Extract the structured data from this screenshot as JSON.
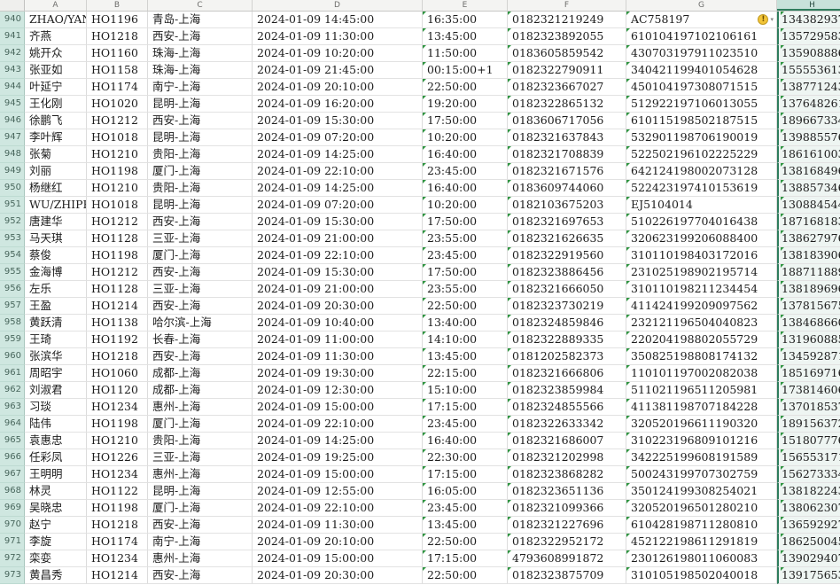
{
  "app": {
    "type": "spreadsheet-grid",
    "selection": "column-H"
  },
  "colors": {
    "accent_green": "#2f7d5d",
    "row_header_bg": "#cfe7e0",
    "selected_col_header_bg": "#c7e2da",
    "gridline": "#dcdcdc",
    "text_indicator_triangle": "#2e9440",
    "warning_yellow": "#f2c437"
  },
  "icons": {
    "warning_glyph": "!",
    "warning_dropdown_glyph": "▾"
  },
  "sheet": {
    "columns": [
      {
        "letter": "A",
        "selected": false
      },
      {
        "letter": "B",
        "selected": false
      },
      {
        "letter": "C",
        "selected": false
      },
      {
        "letter": "D",
        "selected": false
      },
      {
        "letter": "E",
        "selected": false
      },
      {
        "letter": "F",
        "selected": false
      },
      {
        "letter": "G",
        "selected": false
      },
      {
        "letter": "H",
        "selected": true
      }
    ],
    "rows": [
      {
        "num": "940",
        "name": "ZHAO/YAN",
        "flight": "HO1196",
        "route": "青岛-上海",
        "depart": "2024-01-09 14:45:00",
        "arrive": "16:35:00",
        "ticket": "0182321219249",
        "id_no": "AC758197",
        "phone": "134382937",
        "warning": true
      },
      {
        "num": "941",
        "name": "齐燕",
        "flight": "HO1218",
        "route": "西安-上海",
        "depart": "2024-01-09 11:30:00",
        "arrive": "13:45:00",
        "ticket": "0182323892055",
        "id_no": "610104197102106161",
        "phone": "135729583",
        "warning": false
      },
      {
        "num": "942",
        "name": "姚开众",
        "flight": "HO1160",
        "route": "珠海-上海",
        "depart": "2024-01-09 10:20:00",
        "arrive": "11:50:00",
        "ticket": "0183605859542",
        "id_no": "430703197911023510",
        "phone": "135908886",
        "warning": false
      },
      {
        "num": "943",
        "name": "张亚如",
        "flight": "HO1158",
        "route": "珠海-上海",
        "depart": "2024-01-09 21:45:00",
        "arrive": "00:15:00+1",
        "ticket": "0182322790911",
        "id_no": "340421199401054628",
        "phone": "155553613",
        "warning": false
      },
      {
        "num": "944",
        "name": "叶延宁",
        "flight": "HO1174",
        "route": "南宁-上海",
        "depart": "2024-01-09 20:10:00",
        "arrive": "22:50:00",
        "ticket": "0182323667027",
        "id_no": "450104197308071515",
        "phone": "138771243",
        "warning": false
      },
      {
        "num": "945",
        "name": "王化刚",
        "flight": "HO1020",
        "route": "昆明-上海",
        "depart": "2024-01-09 16:20:00",
        "arrive": "19:20:00",
        "ticket": "0182322865132",
        "id_no": "512922197106013055",
        "phone": "137648261",
        "warning": false
      },
      {
        "num": "946",
        "name": "徐鹏飞",
        "flight": "HO1212",
        "route": "西安-上海",
        "depart": "2024-01-09 15:30:00",
        "arrive": "17:50:00",
        "ticket": "0183606717056",
        "id_no": "610115198502187515",
        "phone": "189667334",
        "warning": false
      },
      {
        "num": "947",
        "name": "李叶辉",
        "flight": "HO1018",
        "route": "昆明-上海",
        "depart": "2024-01-09 07:20:00",
        "arrive": "10:20:00",
        "ticket": "0182321637843",
        "id_no": "532901198706190019",
        "phone": "139885576",
        "warning": false
      },
      {
        "num": "948",
        "name": "张菊",
        "flight": "HO1210",
        "route": "贵阳-上海",
        "depart": "2024-01-09 14:25:00",
        "arrive": "16:40:00",
        "ticket": "0182321708839",
        "id_no": "522502196102225229",
        "phone": "186161003",
        "warning": false
      },
      {
        "num": "949",
        "name": "刘丽",
        "flight": "HO1198",
        "route": "厦门-上海",
        "depart": "2024-01-09 22:10:00",
        "arrive": "23:45:00",
        "ticket": "0182321671576",
        "id_no": "642124198002073128",
        "phone": "138168496",
        "warning": false
      },
      {
        "num": "950",
        "name": "杨继红",
        "flight": "HO1210",
        "route": "贵阳-上海",
        "depart": "2024-01-09 14:25:00",
        "arrive": "16:40:00",
        "ticket": "0183609744060",
        "id_no": "522423197410153619",
        "phone": "138857346",
        "warning": false
      },
      {
        "num": "951",
        "name": "WU/ZHIPEN",
        "flight": "HO1018",
        "route": "昆明-上海",
        "depart": "2024-01-09 07:20:00",
        "arrive": "10:20:00",
        "ticket": "0182103675203",
        "id_no": "EJ5104014",
        "phone": "130884544",
        "warning": false
      },
      {
        "num": "952",
        "name": "唐建华",
        "flight": "HO1212",
        "route": "西安-上海",
        "depart": "2024-01-09 15:30:00",
        "arrive": "17:50:00",
        "ticket": "0182321697653",
        "id_no": "510226197704016438",
        "phone": "187168183",
        "warning": false
      },
      {
        "num": "953",
        "name": "马天琪",
        "flight": "HO1128",
        "route": "三亚-上海",
        "depart": "2024-01-09 21:00:00",
        "arrive": "23:55:00",
        "ticket": "0182321626635",
        "id_no": "320623199206088400",
        "phone": "138627976",
        "warning": false
      },
      {
        "num": "954",
        "name": "蔡俊",
        "flight": "HO1198",
        "route": "厦门-上海",
        "depart": "2024-01-09 22:10:00",
        "arrive": "23:45:00",
        "ticket": "0182322919560",
        "id_no": "310110198403172016",
        "phone": "138183906",
        "warning": false
      },
      {
        "num": "955",
        "name": "金海博",
        "flight": "HO1212",
        "route": "西安-上海",
        "depart": "2024-01-09 15:30:00",
        "arrive": "17:50:00",
        "ticket": "0182323886456",
        "id_no": "231025198902195714",
        "phone": "188711889",
        "warning": false
      },
      {
        "num": "956",
        "name": "左乐",
        "flight": "HO1128",
        "route": "三亚-上海",
        "depart": "2024-01-09 21:00:00",
        "arrive": "23:55:00",
        "ticket": "0182321666050",
        "id_no": "310110198211234454",
        "phone": "138189696",
        "warning": false
      },
      {
        "num": "957",
        "name": "王盈",
        "flight": "HO1214",
        "route": "西安-上海",
        "depart": "2024-01-09 20:30:00",
        "arrive": "22:50:00",
        "ticket": "0182323730219",
        "id_no": "411424199209097562",
        "phone": "137815675",
        "warning": false
      },
      {
        "num": "958",
        "name": "黄跃清",
        "flight": "HO1138",
        "route": "哈尔滨-上海",
        "depart": "2024-01-09 10:40:00",
        "arrive": "13:40:00",
        "ticket": "0182324859846",
        "id_no": "232121196504040823",
        "phone": "138468660",
        "warning": false
      },
      {
        "num": "959",
        "name": "王琦",
        "flight": "HO1192",
        "route": "长春-上海",
        "depart": "2024-01-09 11:00:00",
        "arrive": "14:10:00",
        "ticket": "0182322889335",
        "id_no": "220204198802055729",
        "phone": "131960885",
        "warning": false
      },
      {
        "num": "960",
        "name": "张滨华",
        "flight": "HO1218",
        "route": "西安-上海",
        "depart": "2024-01-09 11:30:00",
        "arrive": "13:45:00",
        "ticket": "0181202582373",
        "id_no": "350825198808174132",
        "phone": "134592871",
        "warning": false
      },
      {
        "num": "961",
        "name": "周昭宇",
        "flight": "HO1060",
        "route": "成都-上海",
        "depart": "2024-01-09 19:30:00",
        "arrive": "22:15:00",
        "ticket": "0182321666806",
        "id_no": "110101197002082038",
        "phone": "185169716",
        "warning": false
      },
      {
        "num": "962",
        "name": "刘淑君",
        "flight": "HO1120",
        "route": "成都-上海",
        "depart": "2024-01-09 12:30:00",
        "arrive": "15:10:00",
        "ticket": "0182323859984",
        "id_no": "511021196511205981",
        "phone": "173814606",
        "warning": false
      },
      {
        "num": "963",
        "name": "习琰",
        "flight": "HO1234",
        "route": "惠州-上海",
        "depart": "2024-01-09 15:00:00",
        "arrive": "17:15:00",
        "ticket": "0182324855566",
        "id_no": "411381198707184228",
        "phone": "137018537",
        "warning": false
      },
      {
        "num": "964",
        "name": "陆伟",
        "flight": "HO1198",
        "route": "厦门-上海",
        "depart": "2024-01-09 22:10:00",
        "arrive": "23:45:00",
        "ticket": "0182322633342",
        "id_no": "320520196611190320",
        "phone": "189156372",
        "warning": false
      },
      {
        "num": "965",
        "name": "袁惠忠",
        "flight": "HO1210",
        "route": "贵阳-上海",
        "depart": "2024-01-09 14:25:00",
        "arrive": "16:40:00",
        "ticket": "0182321686007",
        "id_no": "310223196809101216",
        "phone": "151807776",
        "warning": false
      },
      {
        "num": "966",
        "name": "任彩凤",
        "flight": "HO1226",
        "route": "三亚-上海",
        "depart": "2024-01-09 19:25:00",
        "arrive": "22:30:00",
        "ticket": "0182321202998",
        "id_no": "342225199608191589",
        "phone": "156553171",
        "warning": false
      },
      {
        "num": "967",
        "name": "王明明",
        "flight": "HO1234",
        "route": "惠州-上海",
        "depart": "2024-01-09 15:00:00",
        "arrive": "17:15:00",
        "ticket": "0182323868282",
        "id_no": "500243199707302759",
        "phone": "156273334",
        "warning": false
      },
      {
        "num": "968",
        "name": "林灵",
        "flight": "HO1122",
        "route": "昆明-上海",
        "depart": "2024-01-09 12:55:00",
        "arrive": "16:05:00",
        "ticket": "0182323651136",
        "id_no": "350124199308254021",
        "phone": "138182243",
        "warning": false
      },
      {
        "num": "969",
        "name": "吴晓忠",
        "flight": "HO1198",
        "route": "厦门-上海",
        "depart": "2024-01-09 22:10:00",
        "arrive": "23:45:00",
        "ticket": "0182321099366",
        "id_no": "320520196501280210",
        "phone": "138062307",
        "warning": false
      },
      {
        "num": "970",
        "name": "赵宁",
        "flight": "HO1218",
        "route": "西安-上海",
        "depart": "2024-01-09 11:30:00",
        "arrive": "13:45:00",
        "ticket": "0182321227696",
        "id_no": "610428198711280810",
        "phone": "136592927",
        "warning": false
      },
      {
        "num": "971",
        "name": "李旋",
        "flight": "HO1174",
        "route": "南宁-上海",
        "depart": "2024-01-09 20:10:00",
        "arrive": "22:50:00",
        "ticket": "0182322952172",
        "id_no": "452122198611291819",
        "phone": "186250045",
        "warning": false
      },
      {
        "num": "972",
        "name": "栾娈",
        "flight": "HO1234",
        "route": "惠州-上海",
        "depart": "2024-01-09 15:00:00",
        "arrive": "17:15:00",
        "ticket": "4793608991872",
        "id_no": "230126198011060083",
        "phone": "139029407",
        "warning": false
      },
      {
        "num": "973",
        "name": "黄昌秀",
        "flight": "HO1214",
        "route": "西安-上海",
        "depart": "2024-01-09 20:30:00",
        "arrive": "22:50:00",
        "ticket": "0182323875709",
        "id_no": "310105198502040018",
        "phone": "139175653",
        "warning": false
      }
    ]
  }
}
